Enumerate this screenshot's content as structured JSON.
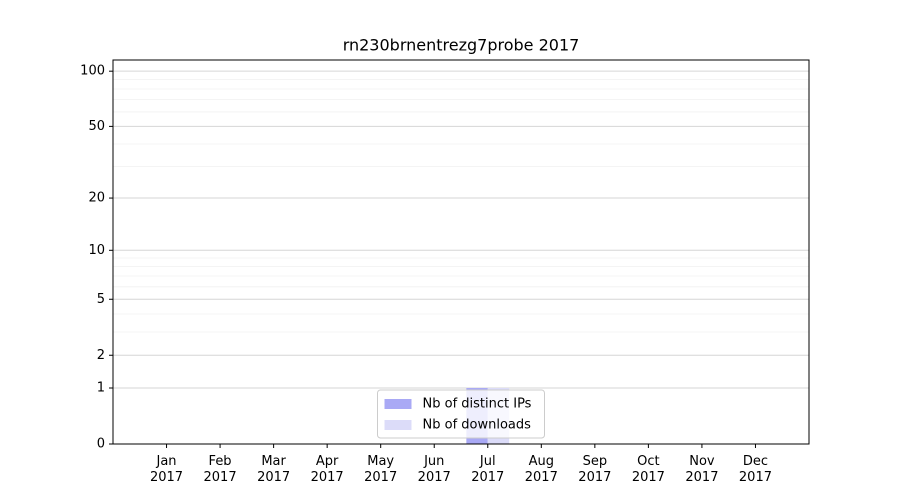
{
  "chart_data": {
    "type": "bar",
    "title": "rn230brnentrezg7probe 2017",
    "categories": [
      "Jan 2017",
      "Feb 2017",
      "Mar 2017",
      "Apr 2017",
      "May 2017",
      "Jun 2017",
      "Jul 2017",
      "Aug 2017",
      "Sep 2017",
      "Oct 2017",
      "Nov 2017",
      "Dec 2017"
    ],
    "series": [
      {
        "name": "Nb of distinct IPs",
        "color": "#a9a9f5",
        "values": [
          0,
          0,
          0,
          0,
          0,
          0,
          1,
          0,
          0,
          0,
          0,
          0
        ]
      },
      {
        "name": "Nb of downloads",
        "color": "#dcdcf9",
        "values": [
          0,
          0,
          0,
          0,
          0,
          0,
          1,
          0,
          0,
          0,
          0,
          0
        ]
      }
    ],
    "yscale": "symlog",
    "ylim": [
      0,
      115
    ],
    "yticks": [
      0,
      1,
      2,
      5,
      10,
      20,
      50,
      100
    ],
    "minor_yticks": [
      3,
      4,
      6,
      7,
      8,
      9,
      30,
      40,
      60,
      70,
      80,
      90
    ],
    "grid": true,
    "legend": "lower center"
  }
}
